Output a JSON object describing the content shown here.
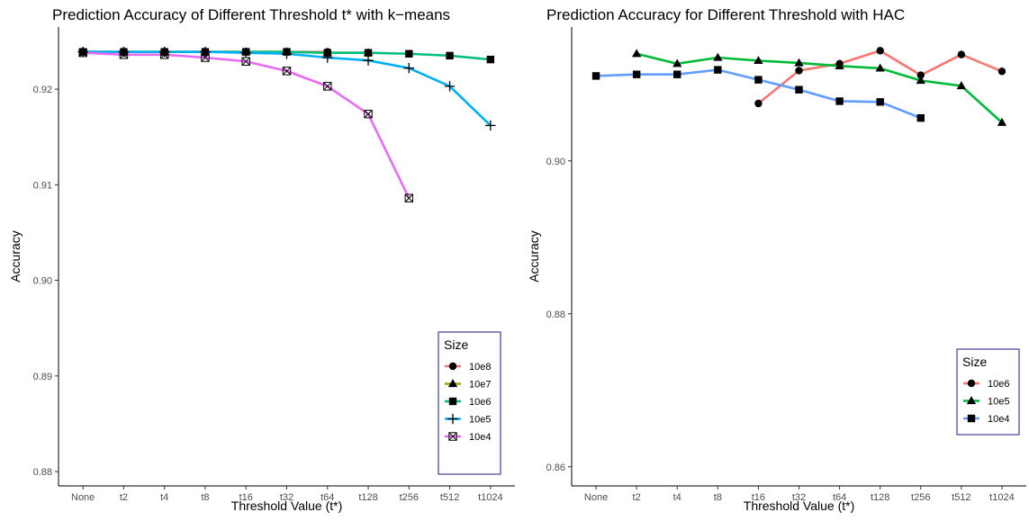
{
  "chart_data": [
    {
      "type": "line",
      "title": "Prediction Accuracy of Different Threshold t* with k−means",
      "xlabel": "Threshold Value (t*)",
      "ylabel": "Accuracy",
      "categories": [
        "None",
        "t2",
        "t4",
        "t8",
        "t16",
        "t32",
        "t64",
        "t128",
        "t256",
        "t512",
        "t1024"
      ],
      "ylim": [
        0.8785,
        0.9265
      ],
      "yticks": [
        0.88,
        0.89,
        0.9,
        0.91,
        0.92
      ],
      "ytick_labels": [
        "0.88",
        "0.89",
        "0.90",
        "0.91",
        "0.92"
      ],
      "grid": false,
      "legend": {
        "title": "Size",
        "placement": "bottom-right"
      },
      "series": [
        {
          "name": "10e8",
          "color": "#F8766D",
          "marker": "circle",
          "values": [
            0.9239,
            0.9239,
            0.9239,
            0.9239,
            0.9239,
            0.9239,
            0.9239,
            null,
            null,
            null,
            null
          ]
        },
        {
          "name": "10e7",
          "color": "#A3A500",
          "marker": "triangle",
          "values": [
            0.9239,
            0.9239,
            0.9239,
            0.9239,
            0.9239,
            0.9239,
            0.9238,
            0.9238,
            null,
            null,
            null
          ]
        },
        {
          "name": "10e6",
          "color": "#00BF7D",
          "marker": "square",
          "values": [
            0.9239,
            0.9239,
            0.9239,
            0.9239,
            0.9239,
            0.9239,
            0.9238,
            0.9238,
            0.9237,
            0.9235,
            0.9231
          ]
        },
        {
          "name": "10e5",
          "color": "#00B0F6",
          "marker": "plus",
          "values": [
            0.9239,
            0.9239,
            0.9239,
            0.9239,
            0.9238,
            0.9237,
            0.9233,
            0.923,
            0.9222,
            0.9203,
            0.9162
          ]
        },
        {
          "name": "10e4",
          "color": "#E76BF3",
          "marker": "square-x",
          "values": [
            0.9238,
            0.9236,
            0.9236,
            0.9233,
            0.9229,
            0.9219,
            0.9203,
            0.9174,
            0.9086,
            null,
            null
          ]
        }
      ]
    },
    {
      "type": "line",
      "title": "Prediction Accuracy for Different Threshold with HAC",
      "xlabel": "Threshold Value (t*)",
      "ylabel": "Accuracy",
      "categories": [
        "None",
        "t2",
        "t4",
        "t8",
        "t16",
        "t32",
        "t64",
        "t128",
        "t256",
        "t512",
        "t1024"
      ],
      "ylim": [
        0.8575,
        0.9175
      ],
      "yticks": [
        0.86,
        0.88,
        0.9
      ],
      "ytick_labels": [
        "0.86",
        "0.88",
        "0.90"
      ],
      "grid": false,
      "legend": {
        "title": "Size",
        "placement": "bottom-right"
      },
      "series": [
        {
          "name": "10e6",
          "color": "#F8766D",
          "marker": "circle",
          "values": [
            null,
            null,
            null,
            null,
            0.9075,
            0.9118,
            0.9127,
            0.9144,
            0.9112,
            0.9139,
            0.9117
          ]
        },
        {
          "name": "10e5",
          "color": "#00BA38",
          "marker": "triangle",
          "values": [
            null,
            0.914,
            0.9127,
            0.9135,
            0.9131,
            0.9128,
            0.9124,
            0.9121,
            0.9105,
            0.9098,
            0.905
          ]
        },
        {
          "name": "10e4",
          "color": "#619CFF",
          "marker": "square",
          "values": [
            0.9111,
            0.9113,
            0.9113,
            0.9119,
            0.9106,
            0.9093,
            0.9078,
            0.9077,
            0.9056,
            null,
            null
          ]
        }
      ]
    }
  ]
}
